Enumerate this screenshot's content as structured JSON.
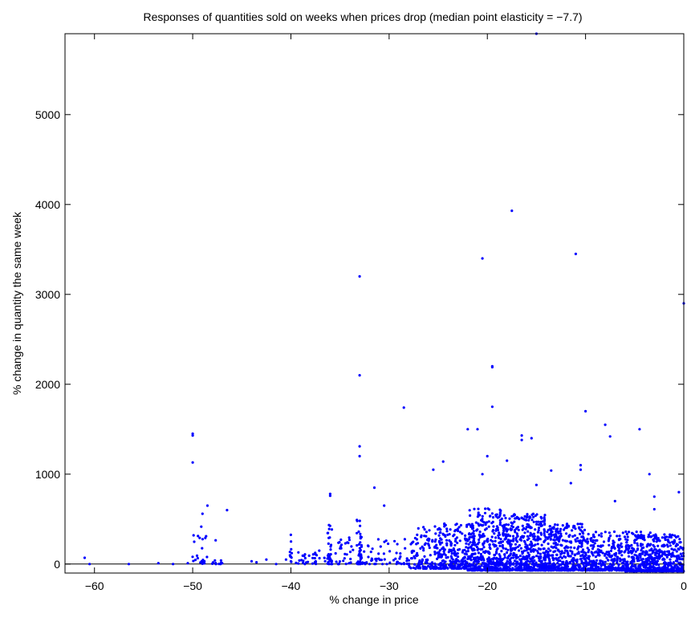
{
  "chart_data": {
    "type": "scatter",
    "title": "Responses of quantities sold on weeks when prices drop (median point elasticity = −7.7)",
    "xlabel": "% change in price",
    "ylabel": "% change in quantity the same week",
    "xlim": [
      -63,
      0
    ],
    "ylim": [
      -100,
      5900
    ],
    "xticks": [
      -60,
      -50,
      -40,
      -30,
      -20,
      -10,
      0
    ],
    "xtick_labels": [
      "−60",
      "−50",
      "−40",
      "−30",
      "−20",
      "−10",
      "0"
    ],
    "yticks": [
      0,
      1000,
      2000,
      3000,
      4000,
      5000
    ],
    "ytick_labels": [
      "0",
      "1000",
      "2000",
      "3000",
      "4000",
      "5000"
    ],
    "zero_line": true,
    "grid": false,
    "color": "#0000ff",
    "notable_points": [
      [
        -15,
        5900
      ],
      [
        -17.5,
        3930
      ],
      [
        -20.5,
        3400
      ],
      [
        -11,
        3450
      ],
      [
        -33,
        3200
      ],
      [
        0,
        2900
      ],
      [
        -33,
        2100
      ],
      [
        -19.5,
        2200
      ],
      [
        -19.5,
        2190
      ],
      [
        -28.5,
        1740
      ],
      [
        -19.5,
        1750
      ],
      [
        -10,
        1700
      ],
      [
        -8,
        1550
      ],
      [
        -7.5,
        1420
      ],
      [
        -4.5,
        1500
      ],
      [
        -22,
        1500
      ],
      [
        -21,
        1500
      ],
      [
        -16.5,
        1430
      ],
      [
        -16.5,
        1380
      ],
      [
        -15.5,
        1400
      ],
      [
        -50,
        1450
      ],
      [
        -50,
        1430
      ],
      [
        -50,
        1130
      ],
      [
        -33,
        1310
      ],
      [
        -33,
        1200
      ],
      [
        -20,
        1200
      ],
      [
        -18,
        1150
      ],
      [
        -24.5,
        1140
      ],
      [
        -10.5,
        1100
      ],
      [
        -10.5,
        1050
      ],
      [
        -13.5,
        1040
      ],
      [
        -25.5,
        1050
      ],
      [
        -20.5,
        1000
      ],
      [
        -3.5,
        1000
      ],
      [
        -11.5,
        900
      ],
      [
        -15,
        880
      ],
      [
        -31.5,
        850
      ],
      [
        -0.5,
        800
      ],
      [
        -36,
        780
      ],
      [
        -36,
        760
      ],
      [
        -3,
        750
      ],
      [
        -7,
        700
      ],
      [
        -48.5,
        650
      ],
      [
        -46.5,
        600
      ],
      [
        -3,
        610
      ],
      [
        -49,
        560
      ],
      [
        -30.5,
        650
      ],
      [
        -61,
        70
      ],
      [
        -60.5,
        0
      ],
      [
        -56.5,
        0
      ],
      [
        -53.5,
        10
      ],
      [
        -52,
        0
      ],
      [
        -50.5,
        10
      ],
      [
        -47,
        10
      ],
      [
        -44,
        30
      ],
      [
        -43.5,
        20
      ],
      [
        -42.5,
        50
      ],
      [
        -41.5,
        0
      ],
      [
        -40.5,
        50
      ],
      [
        -40,
        30
      ]
    ],
    "clusters": [
      {
        "x": [
          -50.2,
          -48.5
        ],
        "y": [
          0,
          420
        ],
        "n": 24
      },
      {
        "x": [
          -48.5,
          -46.5
        ],
        "y": [
          0,
          300
        ],
        "n": 10
      },
      {
        "x": [
          -40.1,
          -39.9
        ],
        "y": [
          0,
          360
        ],
        "n": 10
      },
      {
        "x": [
          -39.5,
          -36.5
        ],
        "y": [
          0,
          150
        ],
        "n": 30
      },
      {
        "x": [
          -36.3,
          -35.8
        ],
        "y": [
          0,
          450
        ],
        "n": 35
      },
      {
        "x": [
          -35.5,
          -33.5
        ],
        "y": [
          0,
          300
        ],
        "n": 30
      },
      {
        "x": [
          -33.3,
          -32.8
        ],
        "y": [
          0,
          500
        ],
        "n": 45
      },
      {
        "x": [
          -32.8,
          -28
        ],
        "y": [
          0,
          300
        ],
        "n": 55
      },
      {
        "x": [
          -28,
          -25
        ],
        "y": [
          -50,
          420
        ],
        "n": 130
      },
      {
        "x": [
          -25,
          -22
        ],
        "y": [
          -50,
          480
        ],
        "n": 230
      },
      {
        "x": [
          -22,
          -18
        ],
        "y": [
          -70,
          620
        ],
        "n": 450
      },
      {
        "x": [
          -18,
          -14
        ],
        "y": [
          -70,
          560
        ],
        "n": 450
      },
      {
        "x": [
          -14,
          -10
        ],
        "y": [
          -70,
          450
        ],
        "n": 380
      },
      {
        "x": [
          -10,
          -6
        ],
        "y": [
          -70,
          360
        ],
        "n": 320
      },
      {
        "x": [
          -6,
          -3
        ],
        "y": [
          -80,
          360
        ],
        "n": 300
      },
      {
        "x": [
          -3,
          0
        ],
        "y": [
          -80,
          330
        ],
        "n": 300
      }
    ]
  }
}
